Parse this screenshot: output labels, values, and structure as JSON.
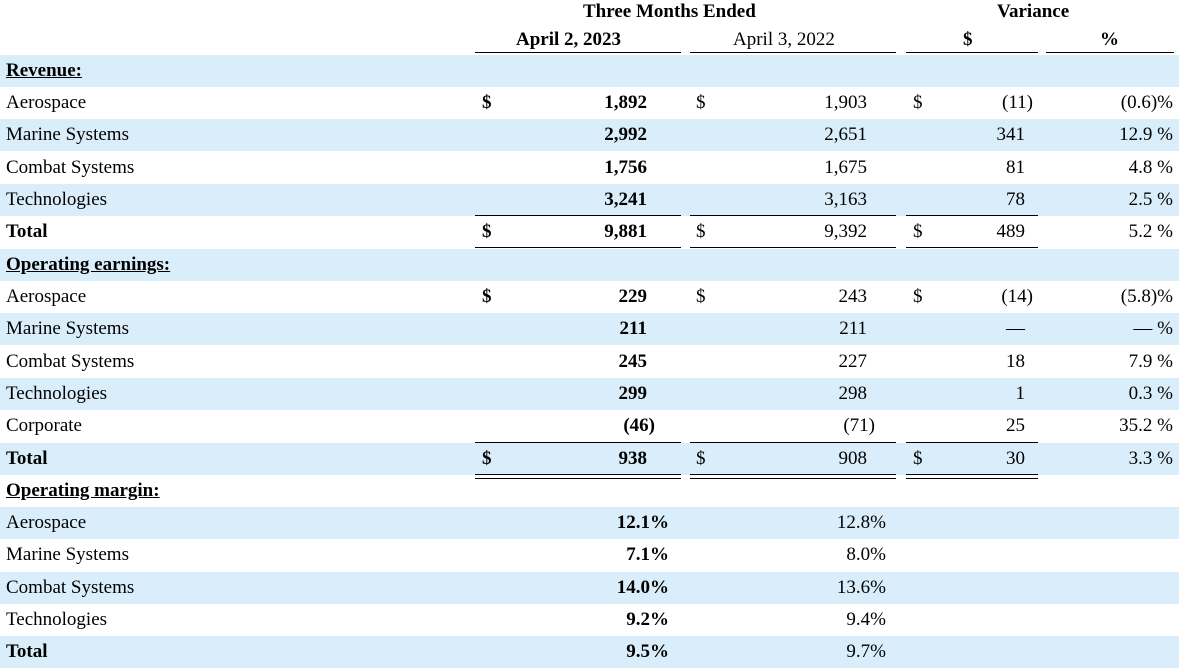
{
  "header": {
    "group_title": "Three Months Ended",
    "col_current": "April 2, 2023",
    "col_prior": "April 3, 2022",
    "variance_title": "Variance",
    "var_dollar": "$",
    "var_pct": "%"
  },
  "sections": {
    "revenue": "Revenue:",
    "operating_earnings": "Operating earnings:",
    "operating_margin": "Operating margin:"
  },
  "rows": [
    {
      "label": "Aerospace",
      "d1": "$",
      "cur": "1,892",
      "d2": "$",
      "prior": "1,903",
      "d3": "$",
      "var": "(11)",
      "pct": "(0.6)%"
    },
    {
      "label": "Marine Systems",
      "d1": "",
      "cur": "2,992",
      "d2": "",
      "prior": "2,651",
      "d3": "",
      "var": "341",
      "pct": "12.9 %"
    },
    {
      "label": "Combat Systems",
      "d1": "",
      "cur": "1,756",
      "d2": "",
      "prior": "1,675",
      "d3": "",
      "var": "81",
      "pct": "4.8 %"
    },
    {
      "label": "Technologies",
      "d1": "",
      "cur": "3,241",
      "d2": "",
      "prior": "3,163",
      "d3": "",
      "var": "78",
      "pct": "2.5 %"
    },
    {
      "label": "Total",
      "d1": "$",
      "cur": "9,881",
      "d2": "$",
      "prior": "9,392",
      "d3": "$",
      "var": "489",
      "pct": "5.2 %"
    },
    {
      "label": "Aerospace",
      "d1": "$",
      "cur": "229",
      "d2": "$",
      "prior": "243",
      "d3": "$",
      "var": "(14)",
      "pct": "(5.8)%"
    },
    {
      "label": "Marine Systems",
      "d1": "",
      "cur": "211",
      "d2": "",
      "prior": "211",
      "d3": "",
      "var": "—",
      "pct": "— %"
    },
    {
      "label": "Combat Systems",
      "d1": "",
      "cur": "245",
      "d2": "",
      "prior": "227",
      "d3": "",
      "var": "18",
      "pct": "7.9 %"
    },
    {
      "label": "Technologies",
      "d1": "",
      "cur": "299",
      "d2": "",
      "prior": "298",
      "d3": "",
      "var": "1",
      "pct": "0.3 %"
    },
    {
      "label": "Corporate",
      "d1": "",
      "cur": "(46)",
      "d2": "",
      "prior": "(71)",
      "d3": "",
      "var": "25",
      "pct": "35.2 %"
    },
    {
      "label": "Total",
      "d1": "$",
      "cur": "938",
      "d2": "$",
      "prior": "908",
      "d3": "$",
      "var": "30",
      "pct": "3.3 %"
    },
    {
      "label": "Aerospace",
      "cur": "12.1%",
      "prior": "12.8%"
    },
    {
      "label": "Marine Systems",
      "cur": "7.1%",
      "prior": "8.0%"
    },
    {
      "label": "Combat Systems",
      "cur": "14.0%",
      "prior": "13.6%"
    },
    {
      "label": "Technologies",
      "cur": "9.2%",
      "prior": "9.4%"
    },
    {
      "label": "Total",
      "cur": "9.5%",
      "prior": "9.7%"
    }
  ]
}
